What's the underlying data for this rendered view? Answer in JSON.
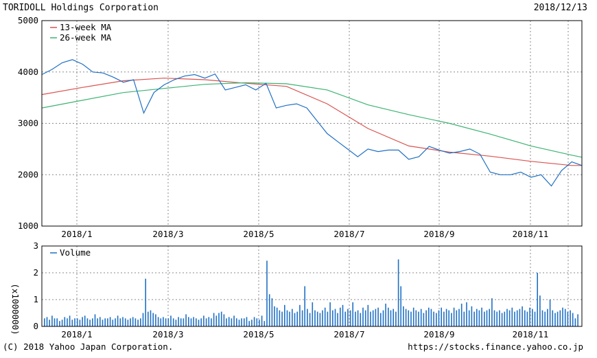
{
  "header": {
    "company": "TORIDOLL Holdings Corporation",
    "date": "2018/12/13"
  },
  "footer": {
    "copyright": "(C) 2018 Yahoo Japan Corporation.",
    "url": "https://stocks.finance.yahoo.co.jp"
  },
  "colors": {
    "price": "#1f6fc4",
    "ma13": "#d9534f",
    "ma26": "#3cb371",
    "volume": "#1f6fc4"
  },
  "chart_data": [
    {
      "type": "line",
      "ylim": [
        1000,
        5000
      ],
      "y_ticks": [
        1000,
        2000,
        3000,
        4000,
        5000
      ],
      "x_ticks": [
        "2018/1",
        "2018/3",
        "2018/5",
        "2018/7",
        "2018/9",
        "2018/11"
      ],
      "x_tick_weeks": [
        3,
        12,
        21,
        30,
        39,
        48
      ],
      "grid": true,
      "legend_position": "top-left",
      "x_range_weeks": [
        0,
        53
      ],
      "series": [
        {
          "name": "13-week MA",
          "x": [
            0,
            4,
            8,
            12,
            16,
            20,
            24,
            28,
            32,
            36,
            40,
            44,
            48,
            52,
            53
          ],
          "values": [
            3560,
            3700,
            3830,
            3880,
            3850,
            3780,
            3720,
            3380,
            2900,
            2560,
            2440,
            2360,
            2260,
            2180,
            2180
          ]
        },
        {
          "name": "26-week MA",
          "x": [
            0,
            4,
            8,
            12,
            16,
            20,
            24,
            28,
            32,
            36,
            40,
            44,
            48,
            52,
            53
          ],
          "values": [
            3300,
            3450,
            3600,
            3680,
            3760,
            3790,
            3770,
            3650,
            3360,
            3170,
            3000,
            2790,
            2560,
            2380,
            2340
          ]
        },
        {
          "name": "Price",
          "x": [
            0,
            1,
            2,
            3,
            4,
            5,
            6,
            7,
            8,
            9,
            10,
            11,
            12,
            13,
            14,
            15,
            16,
            17,
            18,
            19,
            20,
            21,
            22,
            23,
            24,
            25,
            26,
            27,
            28,
            29,
            30,
            31,
            32,
            33,
            34,
            35,
            36,
            37,
            38,
            39,
            40,
            41,
            42,
            43,
            44,
            45,
            46,
            47,
            48,
            49,
            50,
            51,
            52,
            53
          ],
          "values": [
            3950,
            4050,
            4180,
            4240,
            4150,
            4000,
            3980,
            3900,
            3800,
            3850,
            3200,
            3600,
            3750,
            3850,
            3920,
            3950,
            3880,
            3960,
            3650,
            3700,
            3750,
            3650,
            3780,
            3300,
            3350,
            3380,
            3300,
            3050,
            2800,
            2650,
            2500,
            2350,
            2500,
            2450,
            2480,
            2480,
            2300,
            2350,
            2550,
            2480,
            2420,
            2450,
            2500,
            2400,
            2050,
            2000,
            2000,
            2050,
            1950,
            2000,
            1780,
            2080,
            2250,
            2180
          ]
        }
      ]
    },
    {
      "type": "bar",
      "ylabel": "(x1000000)",
      "ylim": [
        0,
        3
      ],
      "y_ticks": [
        0,
        1,
        2,
        3
      ],
      "x_ticks": [
        "2018/1",
        "2018/3",
        "2018/5",
        "2018/7",
        "2018/9",
        "2018/11"
      ],
      "legend_position": "top-left",
      "series": [
        {
          "name": "Volume",
          "values": [
            0.3,
            0.35,
            0.25,
            0.4,
            0.3,
            0.3,
            0.2,
            0.25,
            0.35,
            0.3,
            0.4,
            0.25,
            0.3,
            0.3,
            0.25,
            0.35,
            0.4,
            0.3,
            0.25,
            0.3,
            0.45,
            0.3,
            0.35,
            0.25,
            0.3,
            0.3,
            0.35,
            0.25,
            0.3,
            0.4,
            0.3,
            0.35,
            0.3,
            0.25,
            0.3,
            0.35,
            0.3,
            0.25,
            0.3,
            0.5,
            1.78,
            0.55,
            0.6,
            0.5,
            0.45,
            0.35,
            0.3,
            0.35,
            0.3,
            0.3,
            0.4,
            0.3,
            0.25,
            0.35,
            0.3,
            0.3,
            0.45,
            0.35,
            0.3,
            0.35,
            0.3,
            0.25,
            0.3,
            0.4,
            0.3,
            0.35,
            0.3,
            0.5,
            0.4,
            0.5,
            0.55,
            0.45,
            0.3,
            0.35,
            0.3,
            0.4,
            0.3,
            0.25,
            0.3,
            0.3,
            0.35,
            0.2,
            0.25,
            0.35,
            0.3,
            0.25,
            0.4,
            0.2,
            2.45,
            1.2,
            1.05,
            0.75,
            0.7,
            0.6,
            0.55,
            0.8,
            0.6,
            0.55,
            0.65,
            0.5,
            0.55,
            0.8,
            0.6,
            1.5,
            0.65,
            0.5,
            0.9,
            0.6,
            0.55,
            0.5,
            0.6,
            0.7,
            0.55,
            0.9,
            0.6,
            0.65,
            0.5,
            0.7,
            0.8,
            0.55,
            0.65,
            0.6,
            0.9,
            0.55,
            0.6,
            0.5,
            0.7,
            0.6,
            0.8,
            0.55,
            0.6,
            0.65,
            0.7,
            0.5,
            0.6,
            0.85,
            0.7,
            0.6,
            0.65,
            0.55,
            2.5,
            1.5,
            0.75,
            0.65,
            0.6,
            0.55,
            0.7,
            0.6,
            0.55,
            0.65,
            0.5,
            0.6,
            0.7,
            0.65,
            0.55,
            0.5,
            0.6,
            0.7,
            0.55,
            0.65,
            0.6,
            0.5,
            0.7,
            0.6,
            0.65,
            0.85,
            0.55,
            0.9,
            0.6,
            0.75,
            0.55,
            0.65,
            0.6,
            0.7,
            0.55,
            0.6,
            0.65,
            1.05,
            0.6,
            0.55,
            0.6,
            0.5,
            0.55,
            0.65,
            0.6,
            0.7,
            0.55,
            0.6,
            0.65,
            0.75,
            0.6,
            0.55,
            0.7,
            0.65,
            0.55,
            2.0,
            1.15,
            0.6,
            0.55,
            0.65,
            1.0,
            0.6,
            0.5,
            0.55,
            0.6,
            0.7,
            0.65,
            0.55,
            0.6,
            0.5,
            0.3,
            0.45
          ]
        }
      ]
    }
  ]
}
